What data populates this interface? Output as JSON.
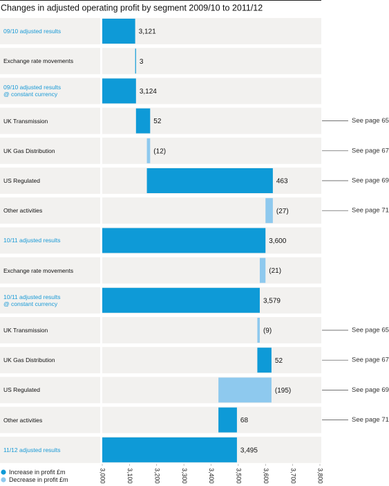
{
  "chart_data": {
    "type": "waterfall",
    "title": "Changes in adjusted operating profit by segment 2009/10 to 2011/12",
    "categories": [
      "09/10 adjusted results",
      "Exchange rate movements",
      "09/10 adjusted results\n@ constant currency",
      "UK Transmission",
      "UK Gas Distribution",
      "US Regulated",
      "Other activities",
      "10/11 adjusted results",
      "Exchange rate movements",
      "10/11 adjusted results\n@ constant currency",
      "UK Transmission",
      "UK Gas Distribution",
      "US Regulated",
      "Other activities",
      "11/12 adjusted results"
    ],
    "is_total": [
      true,
      false,
      true,
      false,
      false,
      false,
      false,
      true,
      false,
      true,
      false,
      false,
      false,
      false,
      true
    ],
    "values": [
      3121,
      3,
      3124,
      52,
      -12,
      463,
      -27,
      3600,
      -21,
      3579,
      -9,
      52,
      -195,
      68,
      3495
    ],
    "value_labels": [
      "3,121",
      "3",
      "3,124",
      "52",
      "(12)",
      "463",
      "(27)",
      "3,600",
      "(21)",
      "3,579",
      "(9)",
      "52",
      "(195)",
      "68",
      "3,495"
    ],
    "notes": [
      null,
      null,
      null,
      "See page 65",
      "See page 67",
      "See page 69",
      "See page 71",
      null,
      null,
      null,
      "See page 65",
      "See page 67",
      "See page 69",
      "See page 71",
      null
    ],
    "series": [
      {
        "name": "Increase in profit £m",
        "color": "#0e9ad7"
      },
      {
        "name": "Decrease in profit £m",
        "color": "#8ec9ee"
      }
    ],
    "total_label_color": "#1a9ad6",
    "xlim": [
      3000,
      3800
    ],
    "xticks": [
      {
        "value": 3000,
        "label": "3,000"
      },
      {
        "value": 3100,
        "label": "3,100"
      },
      {
        "value": 3200,
        "label": "3,200"
      },
      {
        "value": 3300,
        "label": "3,300"
      },
      {
        "value": 3400,
        "label": "3,400"
      },
      {
        "value": 3500,
        "label": "3,500"
      },
      {
        "value": 3600,
        "label": "3,600"
      },
      {
        "value": 3700,
        "label": "3,700"
      },
      {
        "value": 3800,
        "label": "3,800"
      }
    ]
  }
}
